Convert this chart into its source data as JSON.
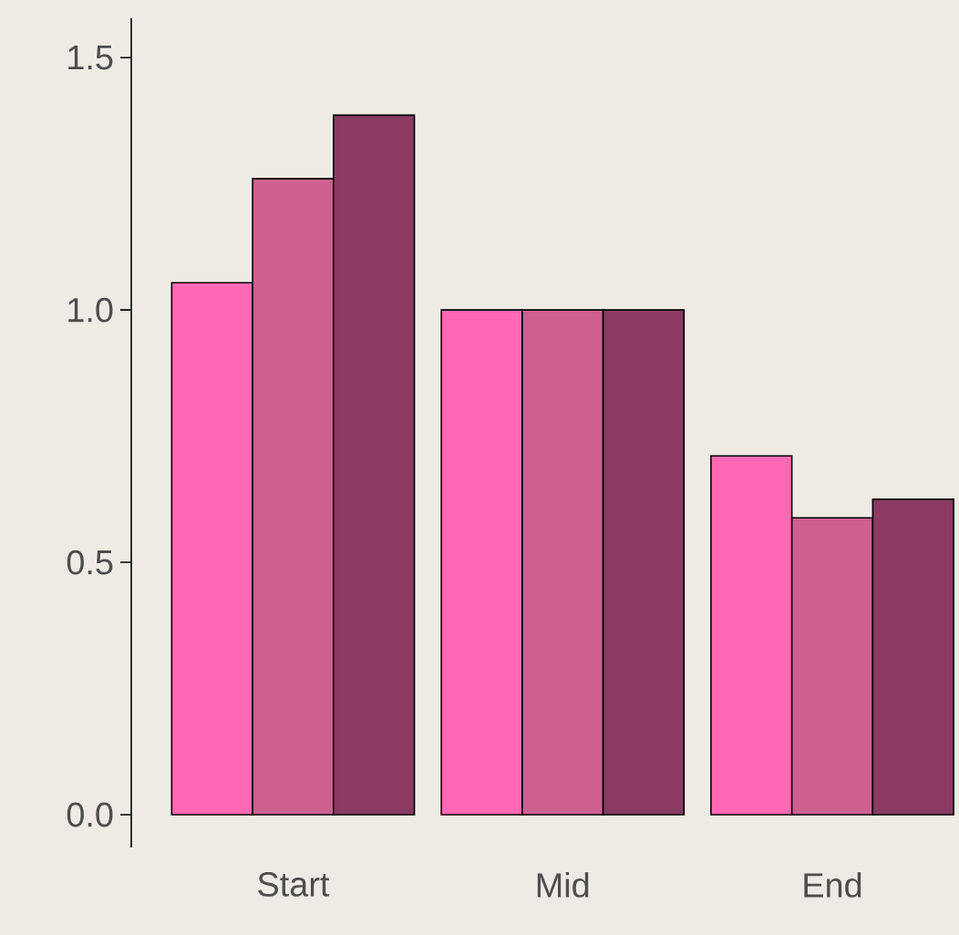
{
  "chart_data": {
    "type": "bar",
    "categories": [
      "Start",
      "Mid",
      "End"
    ],
    "series": [
      {
        "color": "#ff69b4",
        "values": [
          1.054,
          1.0,
          0.711
        ]
      },
      {
        "color": "#cd608f",
        "values": [
          1.26,
          1.0,
          0.588
        ]
      },
      {
        "color": "#8b3a62",
        "values": [
          1.386,
          1.0,
          0.625
        ]
      }
    ],
    "ylim": [
      -0.065,
      1.578
    ],
    "yticks": [
      {
        "value": 0,
        "label": "0.0"
      },
      0.5,
      {
        "value": 1,
        "label": "1.0"
      },
      1.5
    ]
  }
}
